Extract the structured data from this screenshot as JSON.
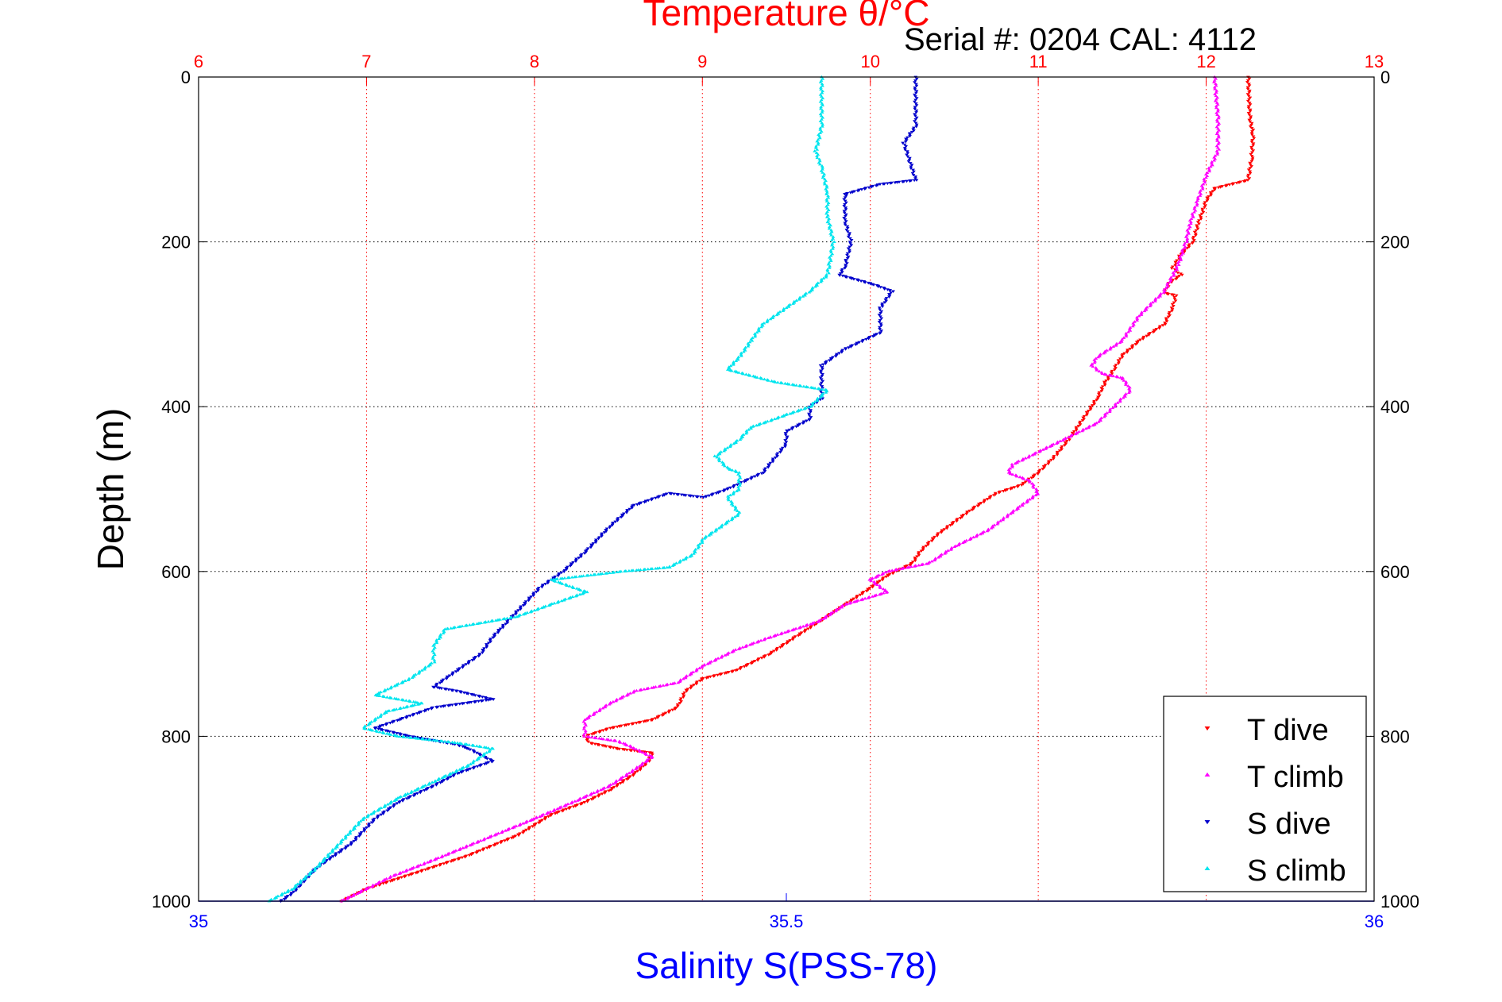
{
  "chart_data": {
    "type": "scatter",
    "title": "Temperature θ/°C",
    "annotation": "Serial #: 0204  CAL: 4112",
    "xlabel": "Salinity S(PSS-78)",
    "ylabel": "Depth (m)",
    "temperature_axis": {
      "range": [
        6,
        13
      ],
      "ticks": [
        "6",
        "7",
        "8",
        "9",
        "10",
        "11",
        "12",
        "13"
      ]
    },
    "salinity_axis": {
      "range": [
        35,
        36
      ],
      "ticks": [
        "35",
        "35.5",
        "36"
      ]
    },
    "depth_axis": {
      "range": [
        0,
        1000
      ],
      "inverted": true,
      "ticks": [
        "0",
        "200",
        "400",
        "600",
        "800",
        "1000"
      ]
    },
    "grid": true,
    "legend_position": "bottom-right",
    "colors": {
      "t_dive": "#ff0000",
      "t_climb": "#ff00ff",
      "s_dive": "#0000cc",
      "s_climb": "#00e5ee",
      "temp_axis": "#ff0000",
      "sal_axis": "#0000ff"
    },
    "series": [
      {
        "name": "T dive",
        "axis": "temperature",
        "marker": "triangle-down",
        "points": [
          [
            12.25,
            0
          ],
          [
            12.26,
            50
          ],
          [
            12.28,
            70
          ],
          [
            12.27,
            100
          ],
          [
            12.25,
            125
          ],
          [
            12.05,
            135
          ],
          [
            12.0,
            150
          ],
          [
            11.95,
            180
          ],
          [
            11.92,
            200
          ],
          [
            11.85,
            215
          ],
          [
            11.8,
            232
          ],
          [
            11.85,
            240
          ],
          [
            11.78,
            250
          ],
          [
            11.75,
            262
          ],
          [
            11.82,
            265
          ],
          [
            11.8,
            280
          ],
          [
            11.75,
            300
          ],
          [
            11.6,
            320
          ],
          [
            11.5,
            338
          ],
          [
            11.45,
            355
          ],
          [
            11.4,
            370
          ],
          [
            11.35,
            390
          ],
          [
            11.3,
            405
          ],
          [
            11.25,
            420
          ],
          [
            11.18,
            440
          ],
          [
            11.1,
            460
          ],
          [
            11.0,
            480
          ],
          [
            10.9,
            495
          ],
          [
            10.75,
            505
          ],
          [
            10.6,
            525
          ],
          [
            10.5,
            540
          ],
          [
            10.4,
            555
          ],
          [
            10.3,
            575
          ],
          [
            10.25,
            590
          ],
          [
            10.1,
            605
          ],
          [
            10.0,
            620
          ],
          [
            9.85,
            640
          ],
          [
            9.7,
            660
          ],
          [
            9.55,
            680
          ],
          [
            9.4,
            700
          ],
          [
            9.2,
            720
          ],
          [
            9.0,
            730
          ],
          [
            8.9,
            745
          ],
          [
            8.85,
            765
          ],
          [
            8.7,
            780
          ],
          [
            8.45,
            790
          ],
          [
            8.3,
            800
          ],
          [
            8.33,
            808
          ],
          [
            8.5,
            815
          ],
          [
            8.7,
            820
          ],
          [
            8.68,
            830
          ],
          [
            8.6,
            845
          ],
          [
            8.45,
            865
          ],
          [
            8.3,
            880
          ],
          [
            8.1,
            895
          ],
          [
            7.9,
            920
          ],
          [
            7.6,
            945
          ],
          [
            7.3,
            965
          ],
          [
            7.0,
            985
          ],
          [
            6.85,
            1000
          ]
        ]
      },
      {
        "name": "T climb",
        "axis": "temperature",
        "marker": "triangle-up",
        "points": [
          [
            12.05,
            0
          ],
          [
            12.07,
            50
          ],
          [
            12.07,
            90
          ],
          [
            12.0,
            120
          ],
          [
            11.95,
            150
          ],
          [
            11.9,
            180
          ],
          [
            11.88,
            200
          ],
          [
            11.83,
            230
          ],
          [
            11.75,
            260
          ],
          [
            11.6,
            290
          ],
          [
            11.5,
            320
          ],
          [
            11.35,
            340
          ],
          [
            11.32,
            350
          ],
          [
            11.38,
            360
          ],
          [
            11.5,
            365
          ],
          [
            11.55,
            380
          ],
          [
            11.45,
            400
          ],
          [
            11.35,
            420
          ],
          [
            11.15,
            440
          ],
          [
            11.0,
            455
          ],
          [
            10.85,
            470
          ],
          [
            10.82,
            480
          ],
          [
            10.95,
            490
          ],
          [
            11.0,
            505
          ],
          [
            10.9,
            520
          ],
          [
            10.8,
            535
          ],
          [
            10.7,
            550
          ],
          [
            10.5,
            570
          ],
          [
            10.35,
            590
          ],
          [
            10.1,
            600
          ],
          [
            10.0,
            610
          ],
          [
            10.1,
            625
          ],
          [
            9.85,
            640
          ],
          [
            9.7,
            660
          ],
          [
            9.4,
            680
          ],
          [
            9.2,
            695
          ],
          [
            9.0,
            715
          ],
          [
            8.85,
            735
          ],
          [
            8.6,
            745
          ],
          [
            8.45,
            760
          ],
          [
            8.3,
            780
          ],
          [
            8.3,
            800
          ],
          [
            8.5,
            806
          ],
          [
            8.6,
            815
          ],
          [
            8.7,
            825
          ],
          [
            8.6,
            840
          ],
          [
            8.45,
            860
          ],
          [
            8.25,
            878
          ],
          [
            8.0,
            900
          ],
          [
            7.7,
            925
          ],
          [
            7.4,
            950
          ],
          [
            7.15,
            970
          ],
          [
            6.95,
            990
          ],
          [
            6.85,
            1000
          ]
        ]
      },
      {
        "name": "S dive",
        "axis": "salinity",
        "marker": "triangle-down",
        "points": [
          [
            35.61,
            0
          ],
          [
            35.61,
            60
          ],
          [
            35.6,
            80
          ],
          [
            35.61,
            125
          ],
          [
            35.58,
            130
          ],
          [
            35.55,
            142
          ],
          [
            35.55,
            175
          ],
          [
            35.555,
            200
          ],
          [
            35.55,
            230
          ],
          [
            35.545,
            240
          ],
          [
            35.575,
            252
          ],
          [
            35.59,
            260
          ],
          [
            35.58,
            280
          ],
          [
            35.58,
            310
          ],
          [
            35.55,
            330
          ],
          [
            35.53,
            350
          ],
          [
            35.53,
            390
          ],
          [
            35.52,
            400
          ],
          [
            35.52,
            415
          ],
          [
            35.5,
            430
          ],
          [
            35.5,
            445
          ],
          [
            35.48,
            480
          ],
          [
            35.45,
            500
          ],
          [
            35.43,
            510
          ],
          [
            35.4,
            505
          ],
          [
            35.37,
            520
          ],
          [
            35.35,
            545
          ],
          [
            35.34,
            560
          ],
          [
            35.33,
            575
          ],
          [
            35.31,
            600
          ],
          [
            35.29,
            620
          ],
          [
            35.27,
            650
          ],
          [
            35.25,
            680
          ],
          [
            35.24,
            700
          ],
          [
            35.22,
            720
          ],
          [
            35.2,
            740
          ],
          [
            35.22,
            745
          ],
          [
            35.25,
            755
          ],
          [
            35.2,
            765
          ],
          [
            35.17,
            780
          ],
          [
            35.15,
            790
          ],
          [
            35.18,
            800
          ],
          [
            35.22,
            810
          ],
          [
            35.23,
            815
          ],
          [
            35.25,
            830
          ],
          [
            35.22,
            845
          ],
          [
            35.2,
            860
          ],
          [
            35.17,
            880
          ],
          [
            35.15,
            900
          ],
          [
            35.13,
            930
          ],
          [
            35.1,
            960
          ],
          [
            35.08,
            990
          ],
          [
            35.07,
            1000
          ]
        ]
      },
      {
        "name": "S climb",
        "axis": "salinity",
        "marker": "triangle-up",
        "points": [
          [
            35.53,
            0
          ],
          [
            35.53,
            60
          ],
          [
            35.525,
            90
          ],
          [
            35.53,
            110
          ],
          [
            35.535,
            140
          ],
          [
            35.535,
            170
          ],
          [
            35.54,
            200
          ],
          [
            35.535,
            240
          ],
          [
            35.52,
            260
          ],
          [
            35.5,
            280
          ],
          [
            35.48,
            300
          ],
          [
            35.47,
            320
          ],
          [
            35.46,
            340
          ],
          [
            35.45,
            355
          ],
          [
            35.49,
            370
          ],
          [
            35.535,
            380
          ],
          [
            35.52,
            400
          ],
          [
            35.5,
            410
          ],
          [
            35.47,
            425
          ],
          [
            35.46,
            440
          ],
          [
            35.44,
            460
          ],
          [
            35.45,
            475
          ],
          [
            35.46,
            480
          ],
          [
            35.46,
            500
          ],
          [
            35.45,
            510
          ],
          [
            35.46,
            530
          ],
          [
            35.44,
            550
          ],
          [
            35.43,
            560
          ],
          [
            35.42,
            580
          ],
          [
            35.4,
            595
          ],
          [
            35.36,
            600
          ],
          [
            35.3,
            610
          ],
          [
            35.33,
            625
          ],
          [
            35.3,
            640
          ],
          [
            35.27,
            655
          ],
          [
            35.21,
            670
          ],
          [
            35.2,
            690
          ],
          [
            35.2,
            710
          ],
          [
            35.18,
            730
          ],
          [
            35.15,
            750
          ],
          [
            35.19,
            760
          ],
          [
            35.16,
            770
          ],
          [
            35.14,
            790
          ],
          [
            35.17,
            800
          ],
          [
            35.22,
            808
          ],
          [
            35.25,
            815
          ],
          [
            35.23,
            835
          ],
          [
            35.2,
            855
          ],
          [
            35.17,
            875
          ],
          [
            35.14,
            900
          ],
          [
            35.12,
            930
          ],
          [
            35.1,
            960
          ],
          [
            35.08,
            985
          ],
          [
            35.06,
            1000
          ]
        ]
      }
    ]
  }
}
